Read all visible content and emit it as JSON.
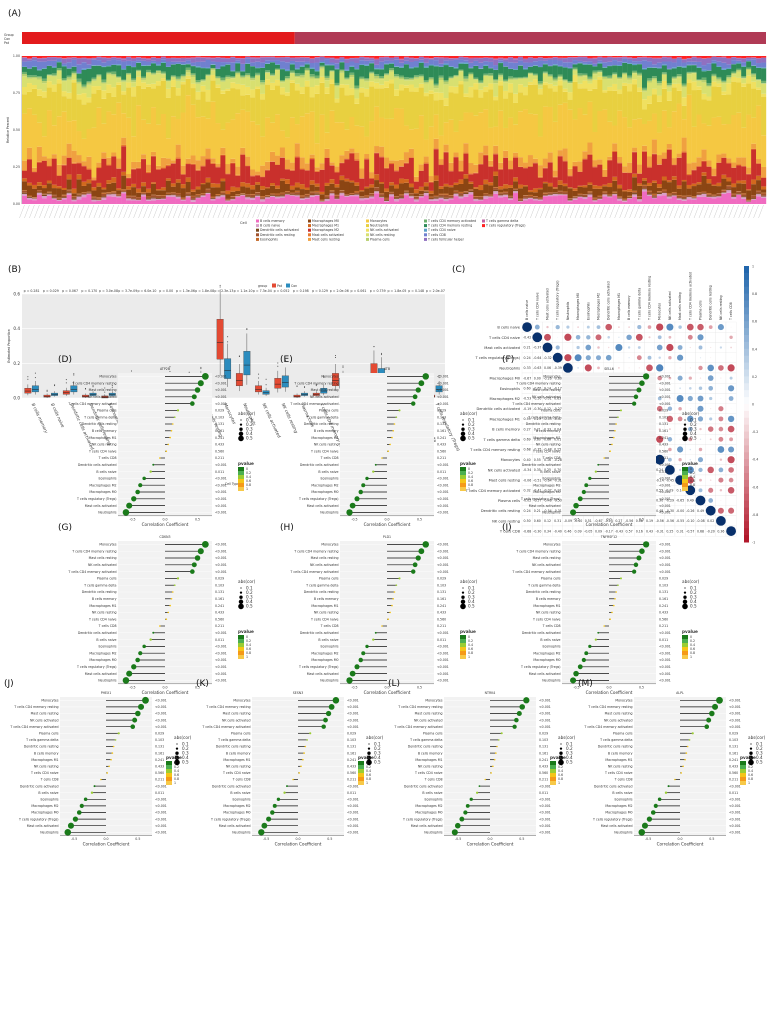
{
  "panels": {
    "A": {
      "label": "(A)"
    },
    "B": {
      "label": "(B)"
    },
    "C": {
      "label": "(C)"
    },
    "D": {
      "label": "(D)",
      "gene": "ATP2B"
    },
    "E": {
      "label": "(E)",
      "gene": "ATB"
    },
    "F": {
      "label": "(F)",
      "gene": "SELL6"
    },
    "G": {
      "label": "(G)",
      "gene": "CDKN3"
    },
    "H": {
      "label": "(H)",
      "gene": "PLD1"
    },
    "I": {
      "label": "(I)",
      "gene": "TNFRSF12"
    },
    "J": {
      "label": "(J)",
      "gene": "PHEX1"
    },
    "K": {
      "label": "(K)",
      "gene": "SESN3"
    },
    "L": {
      "label": "(L)",
      "gene": "NTRK4"
    },
    "M": {
      "label": "(M)",
      "gene": "ALPL"
    }
  },
  "chart_data": [
    {
      "id": "A",
      "type": "bar",
      "stacked": true,
      "ylabel": "Relative Percent",
      "ylim": [
        0,
        1
      ],
      "yticks": [
        "0.00",
        "0.25",
        "0.50",
        "0.75",
        "1.00"
      ],
      "groups": [
        {
          "name": "Con",
          "color": "#e31a1c",
          "n": 55
        },
        {
          "name": "Pat",
          "color": "#b03a55",
          "n": 95
        }
      ],
      "n_samples": 150,
      "legend_title": "Cell",
      "cell_types": [
        "B cells memory",
        "B cells naive",
        "Dendritic cells activated",
        "Dendritic cells resting",
        "Eosinophils",
        "Macrophages M0",
        "Macrophages M1",
        "Macrophages M2",
        "Mast cells activated",
        "Mast cells resting",
        "Monocytes",
        "Neutrophils",
        "NK cells activated",
        "NK cells resting",
        "Plasma cells",
        "T cells CD4 memory activated",
        "T cells CD4 memory resting",
        "T cells CD4 naive",
        "T cells CD8",
        "T cells follicular helper",
        "T cells gamma delta",
        "T cells regulatory (Tregs)"
      ],
      "mean_fractions": [
        0.04,
        0.01,
        0.005,
        0.01,
        0.005,
        0.05,
        0.02,
        0.12,
        0.005,
        0.05,
        0.27,
        0.18,
        0.04,
        0.05,
        0.01,
        0.01,
        0.06,
        0.005,
        0.03,
        0.02,
        0.005,
        0.01
      ],
      "colors": [
        "#f06bc0",
        "#d9a0c8",
        "#7b4a1e",
        "#a0522d",
        "#c46a2a",
        "#8b4513",
        "#d2691e",
        "#c9302c",
        "#e8772e",
        "#f0a040",
        "#f5c842",
        "#e8d040",
        "#f0e060",
        "#d8e070",
        "#b8d070",
        "#6db06d",
        "#2e8b57",
        "#5aa0c8",
        "#7080d0",
        "#9070c0",
        "#c060a0",
        "#ff2020"
      ]
    },
    {
      "id": "B",
      "type": "box",
      "ylabel": "Estimated Proportion",
      "xlabel": "Cell Type",
      "legend_title": "group",
      "groups": [
        "Pat",
        "Con"
      ],
      "group_colors": [
        "#e34a33",
        "#2b8cbe"
      ],
      "ylim": [
        0,
        0.6
      ],
      "yticks": [
        "0.0",
        "0.2",
        "0.4",
        "0.6"
      ],
      "pvalues": [
        "p = 0.281",
        "p = 0.029",
        "p = 0.067",
        "p = 0.170",
        "p = 3.0e-08",
        "p = 3.7e-09",
        "p = 6.0e-10",
        "p = 0.00",
        "p = 1.3e-06",
        "p = 1.8e-08",
        "p = 2.3e-13",
        "p = 1.1e-10",
        "p = 7.3e-04",
        "p = 0.052",
        "p = 0.198",
        "p = 0.129",
        "p = 2.0e-06",
        "p = 0.061",
        "p = 0.739",
        "p = 1.8e-05",
        "p = 0.148",
        "p = 2.0e-07"
      ],
      "categories": [
        "B cells memory",
        "B cells naive",
        "Dendritic cells activated",
        "Dendritic cells resting",
        "Eosinophils",
        "Macrophages M0",
        "Macrophages M1",
        "Macrophages M2",
        "Mast cells activated",
        "Mast cells resting",
        "Monocytes",
        "Neutrophils",
        "NK cells activated",
        "NK cells resting",
        "Plasma cells",
        "T cells CD4 memory activated",
        "T cells CD4 memory resting",
        "T cells CD4 naive",
        "T cells CD8",
        "T cells follicular helper",
        "T cells gamma delta",
        "T cells regulatory (Tregs)"
      ],
      "medians_pat": [
        0.04,
        0.01,
        0.03,
        0.01,
        0.005,
        0.01,
        0.005,
        0.02,
        0.005,
        0.08,
        0.32,
        0.1,
        0.05,
        0.08,
        0.01,
        0.02,
        0.1,
        0.005,
        0.14,
        0.01,
        0.005,
        0.01
      ],
      "medians_con": [
        0.05,
        0.02,
        0.05,
        0.02,
        0.02,
        0.06,
        0.03,
        0.07,
        0.06,
        0.05,
        0.16,
        0.19,
        0.03,
        0.09,
        0.02,
        0.04,
        0.08,
        0.02,
        0.12,
        0.02,
        0.01,
        0.05
      ]
    },
    {
      "id": "C",
      "type": "heatmap",
      "scale": [
        -1,
        1
      ],
      "scale_ticks": [
        "1",
        "0.8",
        "0.6",
        "0.4",
        "0.2",
        "0",
        "-0.2",
        "-0.4",
        "-0.6",
        "-0.8",
        "-1"
      ],
      "labels": [
        "B cells naive",
        "T cells CD4 naive",
        "Mast cells activated",
        "T cells regulatory (Tregs)",
        "Neutrophils",
        "Macrophages M0",
        "Eosinophils",
        "Macrophages M2",
        "Dendritic cells activated",
        "Macrophages M1",
        "B cells memory",
        "T cells gamma delta",
        "T cells CD4 memory resting",
        "Monocytes",
        "NK cells activated",
        "Mast cells resting",
        "T cells CD4 memory activated",
        "Plasma cells",
        "Dendritic cells resting",
        "NK cells resting",
        "T cells CD8"
      ]
    },
    {
      "id": "D",
      "type": "lollipop",
      "xlabel": "Correlation Coefficient",
      "gene": "ATP2B",
      "xlim": [
        -0.5,
        0.5
      ]
    },
    {
      "id": "E",
      "type": "lollipop",
      "xlabel": "Correlation Coefficient",
      "gene": "ATB",
      "xlim": [
        -0.5,
        0.5
      ]
    },
    {
      "id": "F",
      "type": "lollipop",
      "xlabel": "Correlation Coefficient",
      "gene": "SELL6",
      "xlim": [
        -0.5,
        0.5
      ]
    },
    {
      "id": "G",
      "type": "lollipop",
      "xlabel": "Correlation Coefficient",
      "gene": "CDKN3",
      "xlim": [
        -0.5,
        0.5
      ]
    },
    {
      "id": "H",
      "type": "lollipop",
      "xlabel": "Correlation Coefficient",
      "gene": "PLD1",
      "xlim": [
        -0.5,
        0.5
      ]
    },
    {
      "id": "I",
      "type": "lollipop",
      "xlabel": "Correlation Coefficient",
      "gene": "TNFRSF12",
      "xlim": [
        -0.5,
        0.5
      ]
    },
    {
      "id": "J",
      "type": "lollipop",
      "xlabel": "Correlation Coefficient",
      "gene": "PHEX1",
      "xlim": [
        -0.5,
        0.5
      ]
    },
    {
      "id": "K",
      "type": "lollipop",
      "xlabel": "Correlation Coefficient",
      "gene": "SESN3",
      "xlim": [
        -0.5,
        0.5
      ]
    },
    {
      "id": "L",
      "type": "lollipop",
      "xlabel": "Correlation Coefficient",
      "gene": "NTRK4",
      "xlim": [
        -0.5,
        0.5
      ]
    },
    {
      "id": "M",
      "type": "lollipop",
      "xlabel": "Correlation Coefficient",
      "gene": "ALPL",
      "xlim": [
        -0.5,
        0.5
      ]
    }
  ],
  "lollipop_rows": [
    "Monocytes",
    "T cells CD4 memory resting",
    "Mast cells resting",
    "NK cells activated",
    "T cells CD4 memory activated",
    "Plasma cells",
    "T cells gamma delta",
    "Dendritic cells resting",
    "B cells memory",
    "Macrophages M1",
    "NK cells resting",
    "T cells CD4 naive",
    "T cells CD8",
    "Dendritic cells activated",
    "B cells naive",
    "Eosinophils",
    "Macrophages M2",
    "Macrophages M0",
    "T cells regulatory (Tregs)",
    "Mast cells activated",
    "Neutrophils"
  ],
  "lollipop_pvals": [
    "<0.001",
    "<0.001",
    "<0.001",
    "<0.001",
    "<0.001",
    "0.029",
    "0.103",
    "0.131",
    "0.161",
    "0.241",
    "0.433",
    "0.560",
    "0.211",
    "<0.001",
    "0.011",
    "<0.001",
    "<0.001",
    "<0.001",
    "<0.001",
    "<0.001",
    "<0.001"
  ],
  "lollipop_r": [
    0.62,
    0.55,
    0.5,
    0.45,
    0.42,
    0.2,
    0.15,
    0.12,
    0.1,
    0.08,
    0.05,
    0.02,
    -0.08,
    -0.18,
    -0.22,
    -0.32,
    -0.38,
    -0.42,
    -0.48,
    -0.55,
    -0.6
  ],
  "size_legend": {
    "title": "abs(cor)",
    "values": [
      "0.1",
      "0.2",
      "0.3",
      "0.4",
      "0.5"
    ]
  },
  "pvalue_legend": {
    "title": "pvalue",
    "values": [
      "0",
      "0.2",
      "0.4",
      "0.6",
      "0.8",
      "1"
    ]
  }
}
